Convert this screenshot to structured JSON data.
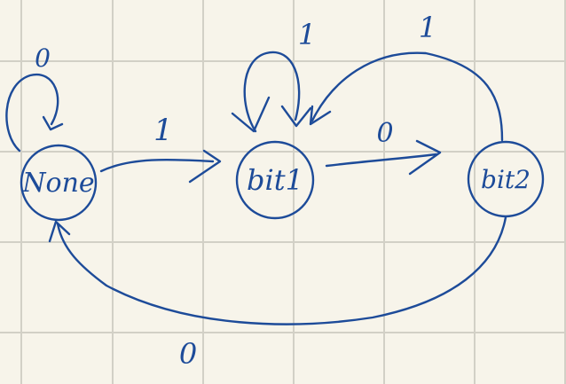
{
  "states": {
    "none": "None",
    "bit1": "bit1",
    "bit2": "bit2"
  },
  "transitions": {
    "none_self": "0",
    "none_to_bit1": "1",
    "bit1_self": "1",
    "bit1_to_bit2": "0",
    "bit2_to_bit1": "1",
    "bit2_to_none": "0"
  },
  "colors": {
    "ink": "#1d4b99",
    "paper": "#f7f4ea",
    "grid": "#d2d0c6"
  }
}
